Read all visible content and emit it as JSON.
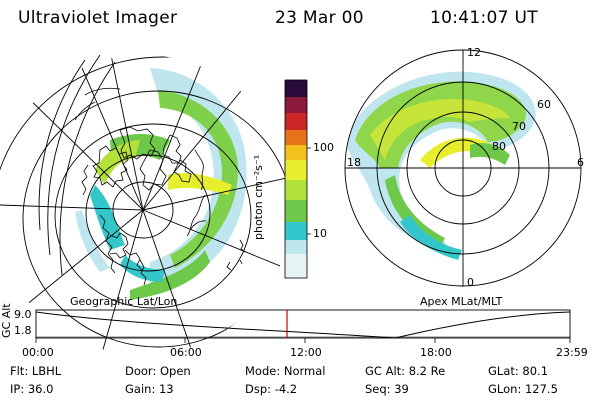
{
  "header": {
    "title": "Ultraviolet Imager",
    "date": "23 Mar 00",
    "time": "10:41:07 UT"
  },
  "colorbar": {
    "label": "photon cm⁻²s⁻¹",
    "ticks": [
      {
        "value": 100,
        "label": "100"
      },
      {
        "value": 10,
        "label": "10"
      }
    ],
    "range": [
      2.5,
      600
    ],
    "colors": [
      "#f2f2f2",
      "#bfe6ee",
      "#33c7cc",
      "#6ec94a",
      "#b3e13a",
      "#e6ee2e",
      "#f3c11e",
      "#e6731a",
      "#cc2626",
      "#8c1a3a",
      "#2a0a3a"
    ]
  },
  "panels": {
    "left_label": "Geographic Lat/Lon",
    "right_label": "Apex MLat/MLT",
    "right_mlt_labels": [
      "12",
      "18",
      "6",
      "0"
    ],
    "right_lat_labels": [
      "60",
      "70",
      "80"
    ]
  },
  "timeline": {
    "axis_label": "GC Alt",
    "y_ticks": [
      "9.0",
      "1.8"
    ],
    "x_ticks": [
      "00:00",
      "06:00",
      "12:00",
      "18:00",
      "23:59"
    ],
    "current_marker": "10:41",
    "marker_color": "#cc0000"
  },
  "info": {
    "flt": {
      "label": "Flt:",
      "value": "LBHL"
    },
    "ip": {
      "label": "IP:",
      "value": "36.0"
    },
    "door": {
      "label": "Door:",
      "value": "Open"
    },
    "gain": {
      "label": "Gain:",
      "value": "13"
    },
    "mode": {
      "label": "Mode:",
      "value": "Normal"
    },
    "dsp": {
      "label": "Dsp:",
      "value": "-4.2"
    },
    "gcalt": {
      "label": "GC Alt:",
      "value": "8.2 Re"
    },
    "seq": {
      "label": "Seq:",
      "value": "39"
    },
    "glat": {
      "label": "GLat:",
      "value": "80.1"
    },
    "glon": {
      "label": "GLon:",
      "value": "127.5"
    }
  }
}
